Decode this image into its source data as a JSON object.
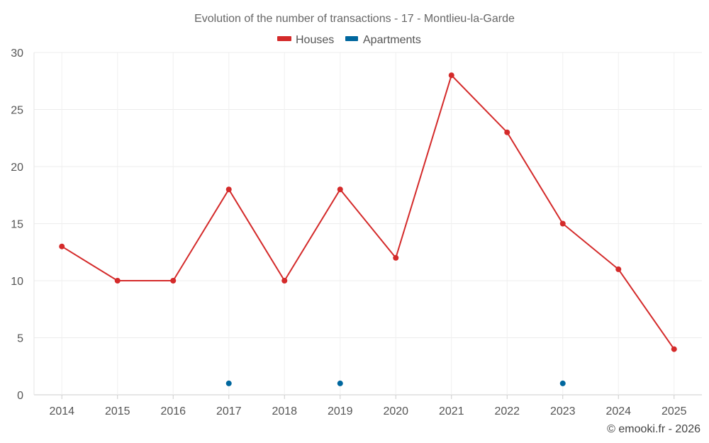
{
  "chart_data": {
    "type": "line",
    "title": "Evolution of the number of transactions - 17 - Montlieu-la-Garde",
    "categories": [
      "2014",
      "2015",
      "2016",
      "2017",
      "2018",
      "2019",
      "2020",
      "2021",
      "2022",
      "2023",
      "2024",
      "2025"
    ],
    "ylim": [
      0,
      30
    ],
    "yticks": [
      0,
      5,
      10,
      15,
      20,
      25,
      30
    ],
    "grid": true,
    "legend_position": "top-center",
    "series": [
      {
        "name": "Houses",
        "color": "#d42a2a",
        "values": [
          13,
          10,
          10,
          18,
          10,
          18,
          12,
          28,
          23,
          15,
          11,
          4
        ],
        "line": true
      },
      {
        "name": "Apartments",
        "color": "#00679e",
        "values": [
          null,
          null,
          null,
          1,
          null,
          1,
          null,
          null,
          null,
          1,
          null,
          null
        ],
        "line": false
      }
    ]
  },
  "credit": "© emooki.fr - 2026"
}
